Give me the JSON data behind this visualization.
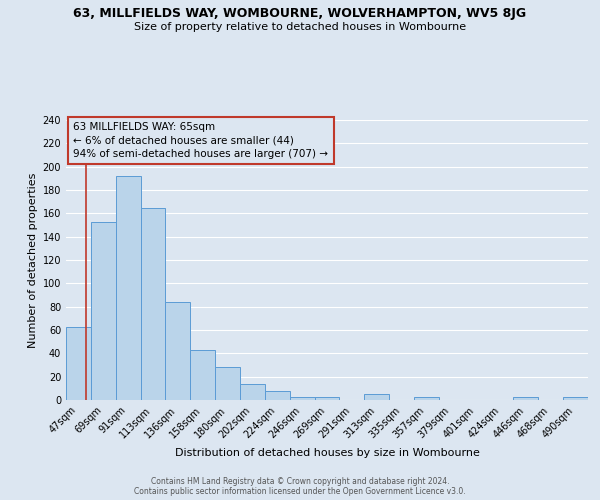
{
  "title": "63, MILLFIELDS WAY, WOMBOURNE, WOLVERHAMPTON, WV5 8JG",
  "subtitle": "Size of property relative to detached houses in Wombourne",
  "xlabel": "Distribution of detached houses by size in Wombourne",
  "ylabel": "Number of detached properties",
  "bar_labels": [
    "47sqm",
    "69sqm",
    "91sqm",
    "113sqm",
    "136sqm",
    "158sqm",
    "180sqm",
    "202sqm",
    "224sqm",
    "246sqm",
    "269sqm",
    "291sqm",
    "313sqm",
    "335sqm",
    "357sqm",
    "379sqm",
    "401sqm",
    "424sqm",
    "446sqm",
    "468sqm",
    "490sqm"
  ],
  "bar_heights": [
    63,
    153,
    192,
    165,
    84,
    43,
    28,
    14,
    8,
    3,
    3,
    0,
    5,
    0,
    3,
    0,
    0,
    0,
    3,
    0,
    3
  ],
  "bar_color": "#bad4ea",
  "bar_edge_color": "#5b9bd5",
  "background_color": "#dce6f1",
  "grid_color": "#ffffff",
  "annotation_line1": "63 MILLFIELDS WAY: 65sqm",
  "annotation_line2": "← 6% of detached houses are smaller (44)",
  "annotation_line3": "94% of semi-detached houses are larger (707) →",
  "annotation_box_edge_color": "#c0392b",
  "property_line_color": "#c0392b",
  "ylim": [
    0,
    240
  ],
  "yticks": [
    0,
    20,
    40,
    60,
    80,
    100,
    120,
    140,
    160,
    180,
    200,
    220,
    240
  ],
  "title_fontsize": 9,
  "subtitle_fontsize": 8,
  "ylabel_fontsize": 8,
  "xlabel_fontsize": 8,
  "tick_fontsize": 7,
  "footer_line1": "Contains HM Land Registry data © Crown copyright and database right 2024.",
  "footer_line2": "Contains public sector information licensed under the Open Government Licence v3.0."
}
